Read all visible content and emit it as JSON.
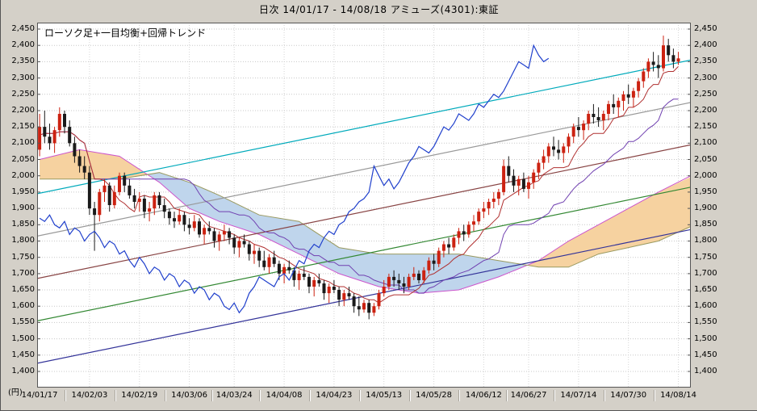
{
  "window": {
    "title": "日次 14/01/17 - 14/08/18   アミューズ(4301):東証"
  },
  "chart_data": {
    "type": "candlestick",
    "title": "日次 14/01/17 - 14/08/18 アミューズ(4301):東証",
    "legend": "ローソク足+一目均衡+回帰トレンド",
    "y_unit": "(円)",
    "ylim": [
      1400,
      2450
    ],
    "y_tick_step": 50,
    "grid": true,
    "y_ticks": [
      "2,450",
      "2,400",
      "2,350",
      "2,300",
      "2,250",
      "2,200",
      "2,150",
      "2,100",
      "2,050",
      "2,000",
      "1,950",
      "1,900",
      "1,850",
      "1,800",
      "1,750",
      "1,700",
      "1,650",
      "1,600",
      "1,550",
      "1,500",
      "1,450",
      "1,400"
    ],
    "x_ticks": [
      "14/01/17",
      "14/02/03",
      "14/02/19",
      "14/03/06",
      "14/03/24",
      "14/04/08",
      "14/04/23",
      "14/05/13",
      "14/05/28",
      "14/06/12",
      "14/06/27",
      "14/07/14",
      "14/07/30",
      "14/08/14"
    ],
    "slots": 131,
    "candles": [
      [
        2080,
        2190,
        2060,
        2150
      ],
      [
        2150,
        2200,
        2100,
        2120
      ],
      [
        2120,
        2160,
        2080,
        2100
      ],
      [
        2100,
        2150,
        2070,
        2140
      ],
      [
        2140,
        2210,
        2120,
        2190
      ],
      [
        2190,
        2200,
        2130,
        2150
      ],
      [
        2150,
        2170,
        2090,
        2100
      ],
      [
        2100,
        2120,
        2040,
        2060
      ],
      [
        2060,
        2080,
        2010,
        2030
      ],
      [
        2030,
        2060,
        1990,
        2010
      ],
      [
        2010,
        2030,
        1880,
        1900
      ],
      [
        1900,
        1920,
        1770,
        1880
      ],
      [
        1880,
        1960,
        1860,
        1950
      ],
      [
        1950,
        1990,
        1920,
        1970
      ],
      [
        1970,
        1980,
        1890,
        1910
      ],
      [
        1910,
        1970,
        1900,
        1950
      ],
      [
        1950,
        2010,
        1940,
        2000
      ],
      [
        2000,
        2010,
        1950,
        1970
      ],
      [
        1970,
        1990,
        1930,
        1940
      ],
      [
        1940,
        1960,
        1900,
        1920
      ],
      [
        1920,
        1950,
        1890,
        1930
      ],
      [
        1930,
        1940,
        1870,
        1890
      ],
      [
        1890,
        1920,
        1860,
        1900
      ],
      [
        1900,
        1950,
        1880,
        1940
      ],
      [
        1940,
        1950,
        1900,
        1910
      ],
      [
        1910,
        1930,
        1870,
        1890
      ],
      [
        1890,
        1900,
        1850,
        1870
      ],
      [
        1870,
        1890,
        1840,
        1860
      ],
      [
        1860,
        1900,
        1850,
        1880
      ],
      [
        1880,
        1890,
        1830,
        1850
      ],
      [
        1850,
        1870,
        1820,
        1840
      ],
      [
        1840,
        1880,
        1830,
        1860
      ],
      [
        1860,
        1870,
        1810,
        1820
      ],
      [
        1820,
        1850,
        1790,
        1840
      ],
      [
        1840,
        1860,
        1820,
        1830
      ],
      [
        1830,
        1840,
        1780,
        1800
      ],
      [
        1800,
        1830,
        1770,
        1820
      ],
      [
        1820,
        1850,
        1800,
        1830
      ],
      [
        1830,
        1840,
        1790,
        1810
      ],
      [
        1810,
        1820,
        1760,
        1780
      ],
      [
        1780,
        1810,
        1750,
        1800
      ],
      [
        1800,
        1820,
        1780,
        1790
      ],
      [
        1790,
        1800,
        1740,
        1760
      ],
      [
        1760,
        1790,
        1730,
        1770
      ],
      [
        1770,
        1780,
        1720,
        1740
      ],
      [
        1740,
        1770,
        1710,
        1720
      ],
      [
        1720,
        1760,
        1700,
        1750
      ],
      [
        1750,
        1770,
        1720,
        1730
      ],
      [
        1730,
        1740,
        1680,
        1700
      ],
      [
        1700,
        1730,
        1670,
        1720
      ],
      [
        1720,
        1740,
        1700,
        1710
      ],
      [
        1710,
        1720,
        1660,
        1680
      ],
      [
        1680,
        1710,
        1650,
        1700
      ],
      [
        1700,
        1720,
        1680,
        1690
      ],
      [
        1690,
        1700,
        1640,
        1660
      ],
      [
        1660,
        1690,
        1630,
        1680
      ],
      [
        1680,
        1700,
        1660,
        1670
      ],
      [
        1670,
        1680,
        1620,
        1640
      ],
      [
        1640,
        1670,
        1610,
        1660
      ],
      [
        1660,
        1680,
        1640,
        1650
      ],
      [
        1650,
        1660,
        1600,
        1620
      ],
      [
        1620,
        1650,
        1600,
        1640
      ],
      [
        1640,
        1660,
        1620,
        1630
      ],
      [
        1630,
        1640,
        1580,
        1600
      ],
      [
        1600,
        1630,
        1570,
        1590
      ],
      [
        1590,
        1620,
        1580,
        1610
      ],
      [
        1610,
        1620,
        1560,
        1580
      ],
      [
        1580,
        1610,
        1570,
        1600
      ],
      [
        1600,
        1650,
        1590,
        1640
      ],
      [
        1640,
        1680,
        1630,
        1660
      ],
      [
        1660,
        1700,
        1650,
        1690
      ],
      [
        1690,
        1710,
        1660,
        1680
      ],
      [
        1680,
        1700,
        1650,
        1670
      ],
      [
        1670,
        1690,
        1640,
        1660
      ],
      [
        1660,
        1700,
        1650,
        1690
      ],
      [
        1690,
        1720,
        1680,
        1700
      ],
      [
        1700,
        1710,
        1670,
        1680
      ],
      [
        1680,
        1720,
        1670,
        1710
      ],
      [
        1710,
        1750,
        1700,
        1740
      ],
      [
        1740,
        1760,
        1710,
        1730
      ],
      [
        1730,
        1780,
        1720,
        1770
      ],
      [
        1770,
        1800,
        1750,
        1790
      ],
      [
        1790,
        1810,
        1760,
        1780
      ],
      [
        1780,
        1820,
        1770,
        1810
      ],
      [
        1810,
        1840,
        1790,
        1830
      ],
      [
        1830,
        1850,
        1800,
        1820
      ],
      [
        1820,
        1860,
        1810,
        1850
      ],
      [
        1850,
        1880,
        1830,
        1860
      ],
      [
        1860,
        1900,
        1850,
        1890
      ],
      [
        1890,
        1920,
        1870,
        1900
      ],
      [
        1900,
        1930,
        1880,
        1920
      ],
      [
        1920,
        1950,
        1900,
        1930
      ],
      [
        1930,
        1960,
        1910,
        1950
      ],
      [
        1950,
        2050,
        1940,
        2030
      ],
      [
        2030,
        2060,
        1980,
        2000
      ],
      [
        2000,
        2020,
        1950,
        1970
      ],
      [
        1970,
        2000,
        1940,
        1990
      ],
      [
        1990,
        2010,
        1950,
        1960
      ],
      [
        1960,
        2000,
        1930,
        1980
      ],
      [
        1980,
        2020,
        1960,
        2010
      ],
      [
        2010,
        2050,
        1990,
        2040
      ],
      [
        2040,
        2080,
        2020,
        2060
      ],
      [
        2060,
        2100,
        2040,
        2090
      ],
      [
        2090,
        2120,
        2060,
        2080
      ],
      [
        2080,
        2110,
        2050,
        2070
      ],
      [
        2070,
        2100,
        2040,
        2090
      ],
      [
        2090,
        2130,
        2070,
        2120
      ],
      [
        2120,
        2160,
        2100,
        2150
      ],
      [
        2150,
        2180,
        2120,
        2140
      ],
      [
        2140,
        2170,
        2110,
        2160
      ],
      [
        2160,
        2200,
        2140,
        2190
      ],
      [
        2190,
        2220,
        2160,
        2180
      ],
      [
        2180,
        2210,
        2150,
        2170
      ],
      [
        2170,
        2200,
        2140,
        2190
      ],
      [
        2190,
        2230,
        2170,
        2220
      ],
      [
        2220,
        2250,
        2190,
        2210
      ],
      [
        2210,
        2240,
        2180,
        2230
      ],
      [
        2230,
        2260,
        2200,
        2250
      ],
      [
        2250,
        2280,
        2220,
        2240
      ],
      [
        2240,
        2270,
        2210,
        2260
      ],
      [
        2260,
        2300,
        2240,
        2290
      ],
      [
        2290,
        2330,
        2270,
        2320
      ],
      [
        2320,
        2360,
        2300,
        2350
      ],
      [
        2350,
        2380,
        2320,
        2340
      ],
      [
        2340,
        2370,
        2300,
        2330
      ],
      [
        2330,
        2430,
        2320,
        2400
      ],
      [
        2400,
        2420,
        2350,
        2370
      ],
      [
        2370,
        2390,
        2330,
        2350
      ],
      [
        2350,
        2380,
        2340,
        2360
      ]
    ],
    "ichimoku": {
      "tenkan": {
        "period": 9,
        "color": "#b03030"
      },
      "kijun": {
        "period": 26,
        "color": "#7040b0"
      },
      "chikou": {
        "shift": 26,
        "color": "#2040cc"
      },
      "senkou_a": {
        "color": "#cc55cc",
        "points": [
          [
            0,
            2050
          ],
          [
            8,
            2080
          ],
          [
            16,
            2060
          ],
          [
            24,
            1980
          ],
          [
            30,
            1900
          ],
          [
            36,
            1860
          ],
          [
            44,
            1820
          ],
          [
            52,
            1760
          ],
          [
            60,
            1700
          ],
          [
            68,
            1660
          ],
          [
            76,
            1640
          ],
          [
            84,
            1650
          ],
          [
            92,
            1690
          ],
          [
            100,
            1740
          ],
          [
            106,
            1800
          ],
          [
            112,
            1850
          ],
          [
            118,
            1900
          ],
          [
            124,
            1950
          ],
          [
            131,
            2000
          ]
        ]
      },
      "senkou_b": {
        "color": "#9a9a60",
        "points": [
          [
            0,
            1990
          ],
          [
            10,
            1990
          ],
          [
            16,
            1990
          ],
          [
            24,
            2010
          ],
          [
            30,
            1980
          ],
          [
            36,
            1940
          ],
          [
            44,
            1880
          ],
          [
            52,
            1860
          ],
          [
            60,
            1780
          ],
          [
            68,
            1760
          ],
          [
            76,
            1760
          ],
          [
            84,
            1760
          ],
          [
            92,
            1740
          ],
          [
            100,
            1720
          ],
          [
            106,
            1720
          ],
          [
            112,
            1760
          ],
          [
            118,
            1780
          ],
          [
            124,
            1800
          ],
          [
            131,
            1845
          ]
        ]
      }
    },
    "trend_channel": [
      {
        "name": "regression-upper-2",
        "color": "#00aabb",
        "left": 1945,
        "right": 2355
      },
      {
        "name": "regression-upper-1",
        "color": "#999999",
        "left": 1815,
        "right": 2225
      },
      {
        "name": "regression-center",
        "color": "#884444",
        "left": 1685,
        "right": 2095
      },
      {
        "name": "regression-lower-1",
        "color": "#338833",
        "left": 1555,
        "right": 1965
      },
      {
        "name": "regression-lower-2",
        "color": "#333399",
        "left": 1425,
        "right": 1835
      }
    ],
    "colors": {
      "background": "#d4d0c8",
      "plot_bg": "#ffffff",
      "grid": "#c8c8c8",
      "grid_vertical": "#d6d6d6",
      "border": "#555555",
      "up": "#cc2211",
      "down": "#1a1a1a",
      "cloud_bull": "#f6d2a0",
      "cloud_bear": "#bfd5ec"
    }
  }
}
